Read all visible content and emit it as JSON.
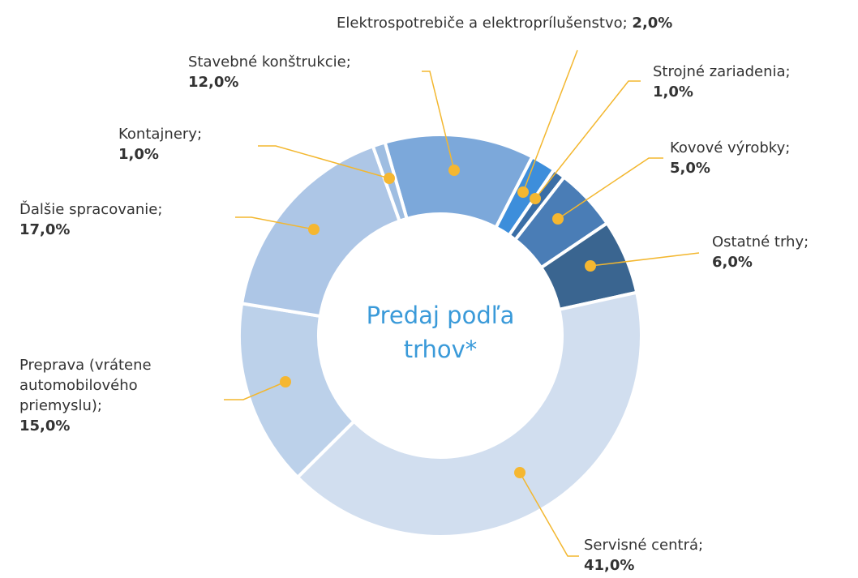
{
  "chart_data": {
    "type": "donut",
    "title": "Predaj podľa trhov*",
    "categories": [
      "Stavebné konštrukcie;",
      "Elektrospotrebiče a elektroprílušenstvo;",
      "Strojné zariadenia;",
      "Kovové výrobky;",
      "Ostatné trhy;",
      "Servisné centrá;",
      "Preprava (vrátene automobilového priemyslu);",
      "Ďalšie spracovanie;",
      "Kontajnery;"
    ],
    "values": [
      12,
      2,
      1,
      5,
      6,
      41,
      15,
      17,
      1
    ],
    "value_labels": [
      "12,0%",
      "2,0%",
      "1,0%",
      "5,0%",
      "6,0%",
      "41,0%",
      "15,0%",
      "17,0%",
      "1,0%"
    ],
    "colors": [
      "#7ca8da",
      "#3d8edb",
      "#3a6ea6",
      "#4a7db6",
      "#3a6590",
      "#d1deef",
      "#bcd1ea",
      "#adc6e6",
      "#9ebde1"
    ]
  }
}
